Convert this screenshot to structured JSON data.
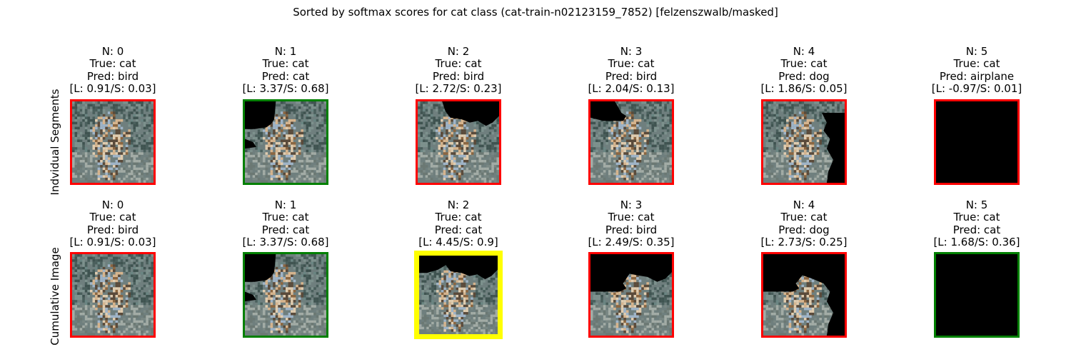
{
  "figure": {
    "suptitle": "Sorted by softmax scores for cat class (cat-train-n02123159_7852) [felzenszwalb/masked]",
    "row_labels": [
      "Indvidual Segments",
      "Cumulative Image"
    ]
  },
  "chart_data": {
    "type": "image-grid",
    "border_colors": {
      "wrong": "#ff0000",
      "correct": "#008000",
      "best": "#ffff00"
    },
    "rows": [
      {
        "label": "Indvidual Segments",
        "cells": [
          {
            "n": 0,
            "true": "cat",
            "pred": "bird",
            "logit": "0.91",
            "softmax": "0.03",
            "border": "red"
          },
          {
            "n": 1,
            "true": "cat",
            "pred": "cat",
            "logit": "3.37",
            "softmax": "0.68",
            "border": "green"
          },
          {
            "n": 2,
            "true": "cat",
            "pred": "bird",
            "logit": "2.72",
            "softmax": "0.23",
            "border": "red"
          },
          {
            "n": 3,
            "true": "cat",
            "pred": "bird",
            "logit": "2.04",
            "softmax": "0.13",
            "border": "red"
          },
          {
            "n": 4,
            "true": "cat",
            "pred": "dog",
            "logit": "1.86",
            "softmax": "0.05",
            "border": "red"
          },
          {
            "n": 5,
            "true": "cat",
            "pred": "airplane",
            "logit": "-0.97",
            "softmax": "0.01",
            "border": "red"
          }
        ]
      },
      {
        "label": "Cumulative Image",
        "cells": [
          {
            "n": 0,
            "true": "cat",
            "pred": "bird",
            "logit": "0.91",
            "softmax": "0.03",
            "border": "red"
          },
          {
            "n": 1,
            "true": "cat",
            "pred": "cat",
            "logit": "3.37",
            "softmax": "0.68",
            "border": "green"
          },
          {
            "n": 2,
            "true": "cat",
            "pred": "cat",
            "logit": "4.45",
            "softmax": "0.9",
            "border": "yellow"
          },
          {
            "n": 3,
            "true": "cat",
            "pred": "bird",
            "logit": "2.49",
            "softmax": "0.35",
            "border": "red"
          },
          {
            "n": 4,
            "true": "cat",
            "pred": "dog",
            "logit": "2.73",
            "softmax": "0.25",
            "border": "red"
          },
          {
            "n": 5,
            "true": "cat",
            "pred": "cat",
            "logit": "1.68",
            "softmax": "0.36",
            "border": "green"
          }
        ]
      }
    ]
  }
}
